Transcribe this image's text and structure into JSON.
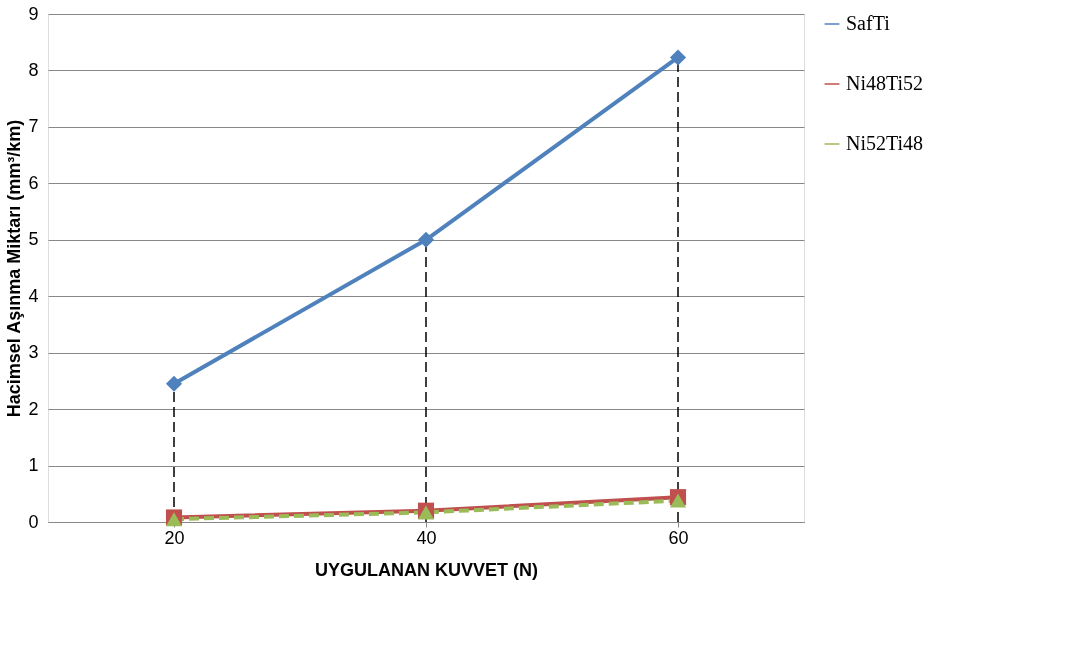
{
  "chart_data": {
    "type": "line",
    "xlabel": "UYGULANAN KUVVET (N)",
    "ylabel": "Hacimsel Aşınma Miktarı (mm³/km)",
    "categories": [
      "20",
      "40",
      "60"
    ],
    "series": [
      {
        "name": "SafTi",
        "color": "#4f81bd",
        "values": [
          2.45,
          5.0,
          8.23
        ],
        "marker": "diamond",
        "line_style": "solid"
      },
      {
        "name": "Ni48Ti52",
        "color": "#c0504d",
        "values": [
          0.08,
          0.2,
          0.44
        ],
        "marker": "square",
        "line_style": "solid"
      },
      {
        "name": "Ni52Ti48",
        "color": "#9bbb59",
        "values": [
          0.05,
          0.17,
          0.38
        ],
        "marker": "triangle",
        "line_style": "dashed"
      },
      {
        "color": "#000000",
        "x": [
          "20",
          "20"
        ],
        "values": [
          0,
          2.45
        ],
        "marker": "none",
        "line_style": "dashed"
      },
      {
        "color": "#000000",
        "x": [
          "40",
          "40"
        ],
        "values": [
          0,
          5.0
        ],
        "marker": "none",
        "line_style": "dashed"
      },
      {
        "color": "#000000",
        "x": [
          "60",
          "60"
        ],
        "values": [
          0,
          8.23
        ],
        "marker": "none",
        "line_style": "dashed"
      }
    ],
    "ylim": [
      0,
      9
    ],
    "yticks": [
      0,
      1,
      2,
      3,
      4,
      5,
      6,
      7,
      8,
      9
    ],
    "grid": "y",
    "legend": "right"
  }
}
